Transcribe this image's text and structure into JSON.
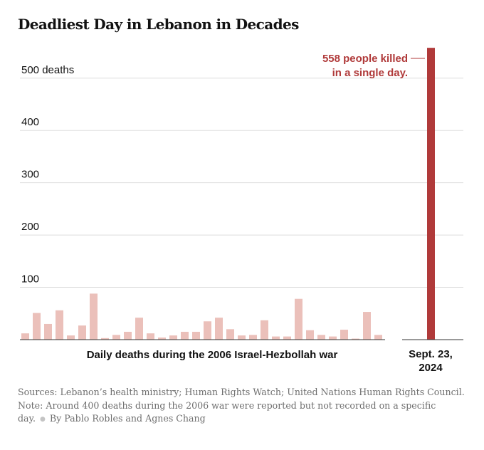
{
  "title": "Deadliest Day in Lebanon in Decades",
  "chart_data": {
    "type": "bar",
    "title": "Deadliest Day in Lebanon in Decades",
    "ylim": [
      0,
      558
    ],
    "yticks": [
      {
        "value": 100,
        "label": "100"
      },
      {
        "value": 200,
        "label": "200"
      },
      {
        "value": 300,
        "label": "300"
      },
      {
        "value": 400,
        "label": "400"
      },
      {
        "value": 500,
        "label": "500 deaths"
      }
    ],
    "series": [
      {
        "name": "Daily deaths during the 2006 Israel-Hezbollah war",
        "color": "#ebc0ba",
        "values": [
          12,
          51,
          30,
          56,
          8,
          27,
          88,
          3,
          9,
          15,
          42,
          12,
          4,
          8,
          15,
          15,
          35,
          42,
          20,
          8,
          9,
          37,
          6,
          6,
          78,
          18,
          9,
          6,
          19,
          2,
          53,
          9
        ]
      },
      {
        "name": "Sept. 23, 2024",
        "color": "#b03a3a",
        "values": [
          558
        ]
      }
    ],
    "xlabel_war": "Daily deaths during the 2006 Israel-Hezbollah war",
    "xlabel_recent": [
      "Sept. 23,",
      "2024"
    ],
    "annotation": [
      "558 people killed",
      "in a single day."
    ]
  },
  "footer": {
    "sources": "Sources: Lebanon’s health ministry; Human Rights Watch; United Nations Human Rights Council.",
    "note": "Note: Around 400 deaths during the 2006 war were reported but not recorded on a specific day.",
    "byline": "By Pablo Robles and Agnes Chang"
  }
}
